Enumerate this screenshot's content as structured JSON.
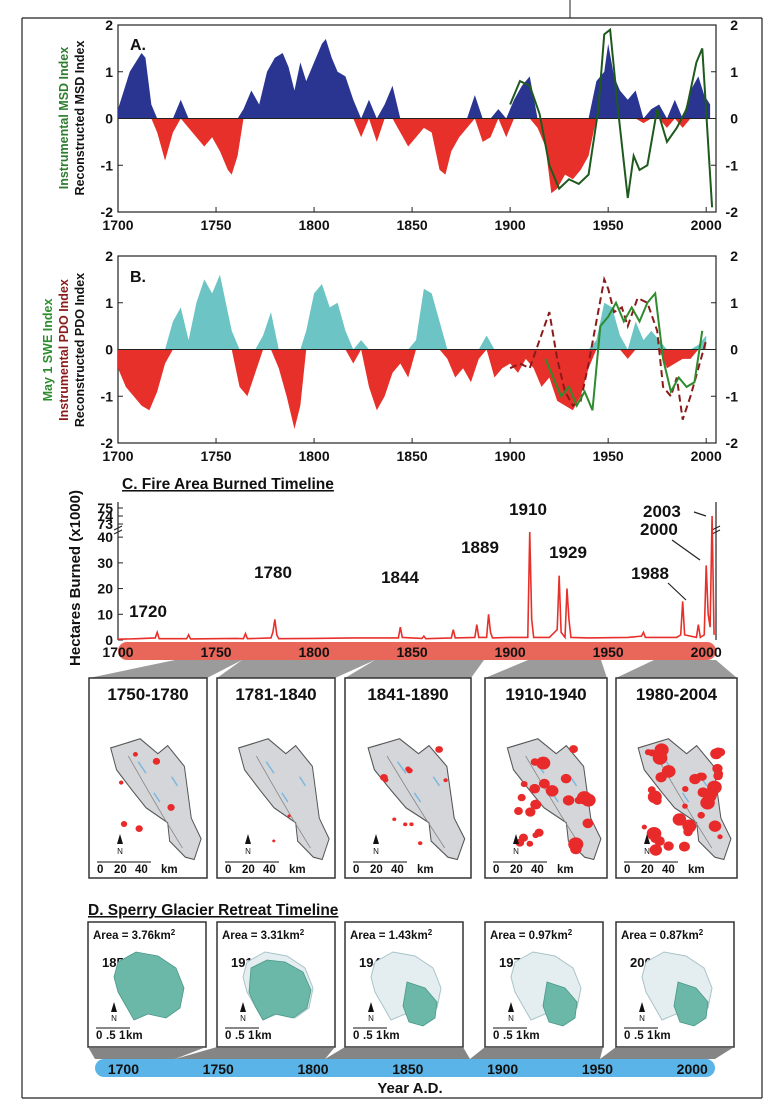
{
  "chart_data": [
    {
      "type": "area",
      "panel_label": "A.",
      "ylabel_left_1": "Instrumental MSD Index",
      "ylabel_left_2": "Reconstructed MSD Index",
      "ylim": [
        -2,
        2
      ],
      "xlim": [
        1700,
        2005
      ],
      "x_ticks": [
        1700,
        1750,
        1800,
        1850,
        1900,
        1950,
        2000
      ],
      "y_ticks": [
        -2,
        -1,
        0,
        1,
        2
      ],
      "colors": {
        "positive": "#2a3592",
        "negative": "#e8302a",
        "instrumental": "#1e5a1e"
      },
      "series": [
        {
          "kind": "reconstructed",
          "x": [
            1700,
            1703,
            1706,
            1709,
            1712,
            1714,
            1717,
            1720,
            1724,
            1728,
            1732,
            1736,
            1740,
            1744,
            1748,
            1752,
            1756,
            1758,
            1761,
            1764,
            1768,
            1772,
            1776,
            1780,
            1784,
            1787,
            1790,
            1793,
            1796,
            1800,
            1804,
            1806,
            1809,
            1812,
            1816,
            1820,
            1824,
            1828,
            1832,
            1836,
            1840,
            1844,
            1848,
            1852,
            1856,
            1860,
            1864,
            1867,
            1870,
            1874,
            1878,
            1882,
            1886,
            1890,
            1894,
            1898,
            1902,
            1906,
            1910,
            1914,
            1918,
            1921,
            1924,
            1928,
            1932,
            1936,
            1940,
            1944,
            1948,
            1950,
            1953,
            1956,
            1960,
            1964,
            1968,
            1972,
            1976,
            1980,
            1984,
            1988,
            1992,
            1996,
            1999,
            2002
          ],
          "y": [
            0.2,
            0.6,
            1.0,
            1.2,
            1.4,
            1.3,
            0.3,
            -0.3,
            -0.9,
            -0.3,
            0.4,
            -0.2,
            -0.4,
            -0.6,
            -0.4,
            -0.7,
            -1.1,
            -1.2,
            -0.8,
            0.2,
            0.6,
            0.3,
            1.0,
            1.3,
            1.4,
            1.1,
            0.6,
            1.2,
            0.8,
            1.2,
            1.6,
            1.7,
            1.3,
            1.0,
            0.9,
            0.4,
            -0.4,
            0.4,
            -0.5,
            0.3,
            0.7,
            -0.3,
            -0.6,
            -0.4,
            -0.2,
            -0.3,
            -1.1,
            -1.2,
            -0.7,
            -0.4,
            -0.2,
            0.5,
            -0.5,
            -0.4,
            0.2,
            -0.4,
            0.4,
            0.7,
            0.9,
            -0.2,
            -0.6,
            -1.6,
            -1.5,
            -1.2,
            -1.3,
            -1.1,
            -0.8,
            0.8,
            1.0,
            1.6,
            0.9,
            0.6,
            0.4,
            0.6,
            -0.1,
            0.2,
            0.3,
            -0.2,
            0.4,
            -0.2,
            0.6,
            0.9,
            0.5,
            0.3
          ]
        },
        {
          "kind": "instrumental",
          "x": [
            1900,
            1905,
            1910,
            1915,
            1920,
            1925,
            1930,
            1935,
            1940,
            1945,
            1948,
            1951,
            1955,
            1960,
            1963,
            1966,
            1970,
            1975,
            1980,
            1985,
            1990,
            1995,
            1998,
            2003
          ],
          "y": [
            0.3,
            0.8,
            0.7,
            0.1,
            -1.0,
            -1.5,
            -1.3,
            -1.4,
            -1.2,
            0.2,
            1.8,
            1.9,
            0.2,
            -1.7,
            -0.8,
            -1.1,
            -1.0,
            0.2,
            -0.5,
            -0.2,
            0.2,
            1.2,
            1.5,
            -1.9
          ]
        }
      ]
    },
    {
      "type": "area",
      "panel_label": "B.",
      "ylabel_left_1": "May 1 SWE Index",
      "ylabel_left_2": "Instrumental PDO Index",
      "ylabel_left_3": "Reconstructed PDO Index",
      "ylim": [
        -2,
        2
      ],
      "xlim": [
        1700,
        2005
      ],
      "x_ticks": [
        1700,
        1750,
        1800,
        1850,
        1900,
        1950,
        2000
      ],
      "y_ticks": [
        -2,
        -1,
        0,
        1,
        2
      ],
      "colors": {
        "positive": "#6cc4c4",
        "negative": "#e8302a",
        "pdo": "#8b1a1a",
        "swe": "#2e8b2e"
      },
      "series": [
        {
          "kind": "reconstructed",
          "x": [
            1700,
            1704,
            1708,
            1712,
            1716,
            1720,
            1724,
            1728,
            1732,
            1736,
            1740,
            1744,
            1748,
            1752,
            1756,
            1758,
            1762,
            1766,
            1770,
            1774,
            1778,
            1782,
            1786,
            1790,
            1793,
            1796,
            1800,
            1804,
            1808,
            1812,
            1816,
            1820,
            1824,
            1828,
            1832,
            1836,
            1840,
            1844,
            1848,
            1852,
            1856,
            1860,
            1864,
            1868,
            1872,
            1876,
            1880,
            1884,
            1888,
            1892,
            1896,
            1900,
            1904,
            1908,
            1912,
            1916,
            1920,
            1924,
            1928,
            1932,
            1936,
            1940,
            1944,
            1948,
            1952,
            1956,
            1960,
            1964,
            1968,
            1972,
            1976,
            1980,
            1984,
            1988,
            1992,
            1996,
            2000
          ],
          "y": [
            -0.4,
            -0.8,
            -1.0,
            -1.2,
            -1.3,
            -0.9,
            -0.3,
            0.6,
            0.9,
            0.2,
            1.0,
            1.5,
            1.2,
            1.6,
            0.8,
            0.4,
            -0.8,
            -1.0,
            -0.5,
            0.3,
            0.8,
            -0.4,
            -1.0,
            -1.7,
            -1.2,
            0.4,
            1.2,
            1.4,
            0.9,
            1.0,
            0.4,
            -0.3,
            0.2,
            -0.8,
            -1.3,
            -1.0,
            -0.5,
            -0.3,
            -0.6,
            0.2,
            1.3,
            1.2,
            0.6,
            -0.2,
            -0.6,
            -0.4,
            -0.7,
            -0.2,
            0.3,
            -0.6,
            -0.4,
            -0.3,
            -0.5,
            -0.2,
            -0.4,
            -0.8,
            -0.6,
            -1.1,
            -1.2,
            -1.3,
            -1.0,
            -0.4,
            0.2,
            1.0,
            0.9,
            0.3,
            -0.2,
            0.6,
            0.2,
            0.4,
            0.2,
            -0.4,
            -0.3,
            -0.2,
            -0.2,
            0.1,
            0.3
          ]
        },
        {
          "kind": "instrumental_pdo",
          "style": "dashed",
          "x": [
            1900,
            1905,
            1910,
            1915,
            1920,
            1924,
            1928,
            1932,
            1936,
            1940,
            1944,
            1948,
            1950,
            1953,
            1957,
            1960,
            1965,
            1970,
            1975,
            1978,
            1982,
            1985,
            1988,
            1992,
            1996,
            2000
          ],
          "y": [
            -0.4,
            -0.3,
            -0.4,
            0.2,
            0.8,
            -0.2,
            -0.9,
            -1.2,
            -1.1,
            -0.3,
            0.6,
            1.5,
            1.3,
            0.8,
            0.9,
            0.5,
            1.1,
            1.0,
            0.4,
            -0.8,
            -1.0,
            -0.6,
            -1.5,
            -1.0,
            -0.4,
            0.2
          ]
        },
        {
          "kind": "swe",
          "x": [
            1918,
            1922,
            1926,
            1930,
            1934,
            1938,
            1942,
            1946,
            1950,
            1954,
            1958,
            1962,
            1966,
            1970,
            1974,
            1978,
            1982,
            1986,
            1990,
            1994,
            1998
          ],
          "y": [
            -0.2,
            -0.6,
            -1.0,
            -0.8,
            -1.2,
            -0.9,
            -1.3,
            0.5,
            0.7,
            1.0,
            0.6,
            0.9,
            0.6,
            1.0,
            1.2,
            -0.2,
            -0.9,
            -0.6,
            -0.8,
            -0.7,
            0.4
          ]
        }
      ]
    },
    {
      "type": "line",
      "title": "C. Fire Area Burned Timeline",
      "ylabel": "Hectares Burned (x1000)",
      "y_ticks_lower": [
        0,
        10,
        20,
        30,
        40
      ],
      "y_ticks_upper": [
        73,
        74,
        75
      ],
      "x_ticks": [
        1700,
        1750,
        1800,
        1850,
        1900,
        1950,
        2000
      ],
      "color": "#e8302a",
      "x": [
        1700,
        1710,
        1719,
        1720,
        1721,
        1735,
        1736,
        1737,
        1760,
        1764,
        1765,
        1766,
        1778,
        1779,
        1780,
        1781,
        1782,
        1800,
        1820,
        1843,
        1844,
        1845,
        1855,
        1856,
        1857,
        1870,
        1871,
        1872,
        1882,
        1883,
        1884,
        1888,
        1889,
        1890,
        1891,
        1900,
        1909,
        1910,
        1911,
        1912,
        1920,
        1924,
        1925,
        1926,
        1928,
        1929,
        1930,
        1931,
        1940,
        1960,
        1967,
        1968,
        1969,
        1985,
        1987,
        1988,
        1989,
        1995,
        1996,
        1997,
        1999,
        2000,
        2001,
        2002,
        2003,
        2004
      ],
      "y": [
        0.3,
        0.5,
        0.8,
        3,
        0.5,
        0.5,
        2,
        0.4,
        0.6,
        0.5,
        2.5,
        0.5,
        0.8,
        3,
        8,
        2,
        0.5,
        0.6,
        0.8,
        0.8,
        5,
        1,
        0.6,
        1.5,
        0.5,
        0.8,
        4,
        0.8,
        1,
        6,
        1,
        1,
        10,
        3,
        0.8,
        1,
        1,
        42,
        8,
        1,
        1,
        4,
        25,
        3,
        1,
        20,
        8,
        1,
        0.8,
        1,
        1.5,
        3,
        1,
        1,
        2,
        15,
        2,
        1,
        6,
        1,
        2,
        29,
        10,
        5,
        74,
        2
      ],
      "annotations": [
        {
          "label": "1720",
          "year": 1720
        },
        {
          "label": "1780",
          "year": 1780
        },
        {
          "label": "1844",
          "year": 1844
        },
        {
          "label": "1889",
          "year": 1889
        },
        {
          "label": "1910",
          "year": 1910
        },
        {
          "label": "1929",
          "year": 1929
        },
        {
          "label": "1988",
          "year": 1988
        },
        {
          "label": "2000",
          "year": 2000
        },
        {
          "label": "2003",
          "year": 2003
        }
      ]
    }
  ],
  "fire_maps": [
    {
      "period": "1750-1780",
      "scale": [
        "0",
        "20",
        "40",
        "km"
      ],
      "north": "N"
    },
    {
      "period": "1781-1840",
      "scale": [
        "0",
        "20",
        "40",
        "km"
      ],
      "north": "N"
    },
    {
      "period": "1841-1890",
      "scale": [
        "0",
        "20",
        "40",
        "km"
      ],
      "north": "N"
    },
    {
      "period": "1910-1940",
      "scale": [
        "0",
        "20",
        "40",
        "km"
      ],
      "north": "N"
    },
    {
      "period": "1980-2004",
      "scale": [
        "0",
        "20",
        "40",
        "km"
      ],
      "north": "N"
    }
  ],
  "glacier": {
    "title": "D. Sperry Glacier Retreat Timeline",
    "panels": [
      {
        "area_label": "Area = 3.76km",
        "sup": "2",
        "year": "1850"
      },
      {
        "area_label": "Area = 3.31km",
        "sup": "2",
        "year": "1913"
      },
      {
        "area_label": "Area = 1.43km",
        "sup": "2",
        "year": "1945"
      },
      {
        "area_label": "Area = 0.97km",
        "sup": "2",
        "year": "1979"
      },
      {
        "area_label": "Area = 0.87km",
        "sup": "2",
        "year": "2003"
      }
    ],
    "scale": [
      "0",
      ".5",
      "1",
      "km"
    ],
    "north": "N"
  },
  "bottom_axis": {
    "x_ticks": [
      "1700",
      "1750",
      "1800",
      "1850",
      "1900",
      "1950",
      "2000"
    ],
    "xlabel": "Year A.D."
  },
  "colors": {
    "fire_bar": "#e8665a",
    "glacier_bar": "#5ab4e8",
    "glacier": "#6bb8a8",
    "map_bg": "#d4d6da"
  }
}
